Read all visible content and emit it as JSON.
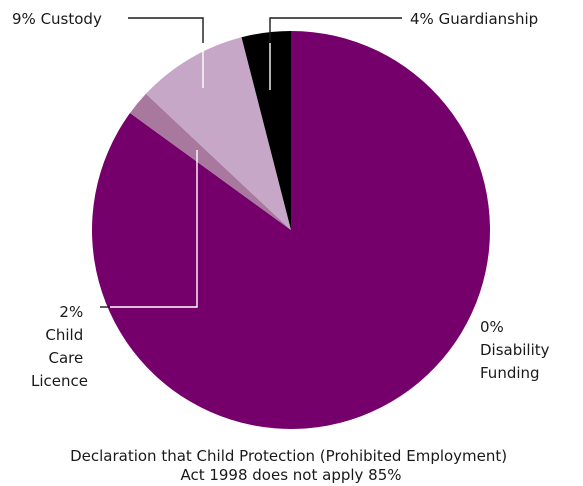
{
  "chart_data": {
    "type": "pie",
    "categories": [
      "Declaration that Child Protection (Prohibited Employment) Act 1998 does not apply",
      "Child Care Licence",
      "Custody",
      "Guardianship",
      "Disability Funding"
    ],
    "values": [
      85,
      2,
      9,
      4,
      0
    ],
    "colors": [
      "#76006b",
      "#a8789e",
      "#c7a7c8",
      "#000000",
      "#76006b"
    ],
    "labels": {
      "declaration": [
        "Declaration that Child Protection (Prohibited Employment)",
        "Act 1998 does not apply 85%"
      ],
      "child_care": [
        "2%",
        "Child",
        "Care",
        "Licence"
      ],
      "custody": [
        "9% Custody"
      ],
      "guardianship": [
        "4% Guardianship"
      ],
      "disability": [
        "0%",
        "Disability",
        "Funding"
      ]
    },
    "legend": "none",
    "grid": false
  }
}
